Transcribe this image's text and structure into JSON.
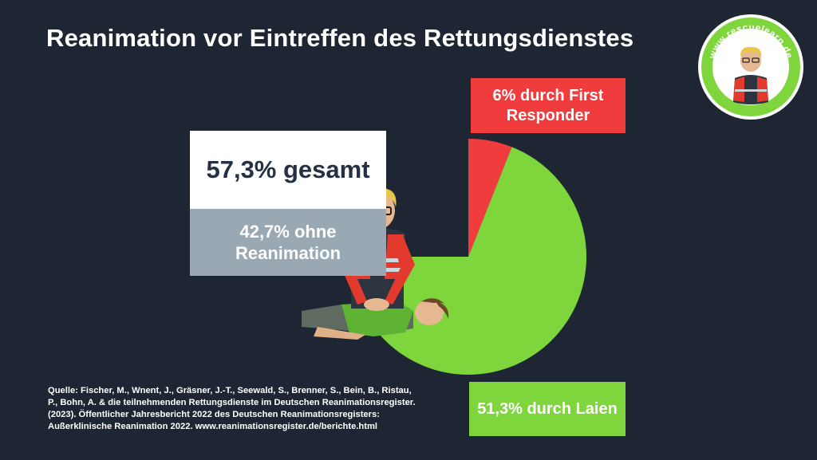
{
  "title": "Reanimation vor Eintreffen des Rettungsdienstes",
  "logo": {
    "text": "www.rescuelearn.de",
    "ring_color": "#7ed63c"
  },
  "labels": {
    "total": "57,3% gesamt",
    "none": "42,7% ohne Reanimation",
    "first_responder": "6% durch First Responder",
    "laien": "51,3% durch Laien"
  },
  "source": "Quelle: Fischer, M., Wnent, J., Gräsner, J.-T., Seewald, S., Brenner, S., Bein, B., Ristau, P., Bohn, A. & die teilnehmenden Rettungsdienste im Deutschen Reanimationsregister. (2023). Öffentlicher Jahresbericht 2022 des Deutschen Reanimationsregisters: Außerklinische Reanimation 2022. www.reanimationsregister.de/berichte.html",
  "colors": {
    "background": "#1f2633",
    "laien": "#7ed63c",
    "first_responder": "#f03c3c",
    "none": "#9aa8b3",
    "total_box": "#ffffff"
  },
  "chart_data": {
    "type": "pie",
    "title": "Reanimation vor Eintreffen des Rettungsdienstes",
    "start_angle_deg": 0,
    "slices": [
      {
        "label": "6% durch First Responder",
        "value": 6,
        "color": "#f03c3c"
      },
      {
        "label": "51,3% durch Laien",
        "value": 51.3,
        "color": "#7ed63c"
      }
    ],
    "visible_share_of_circle": 0.75,
    "unshown_label": "42,7% ohne Reanimation"
  }
}
